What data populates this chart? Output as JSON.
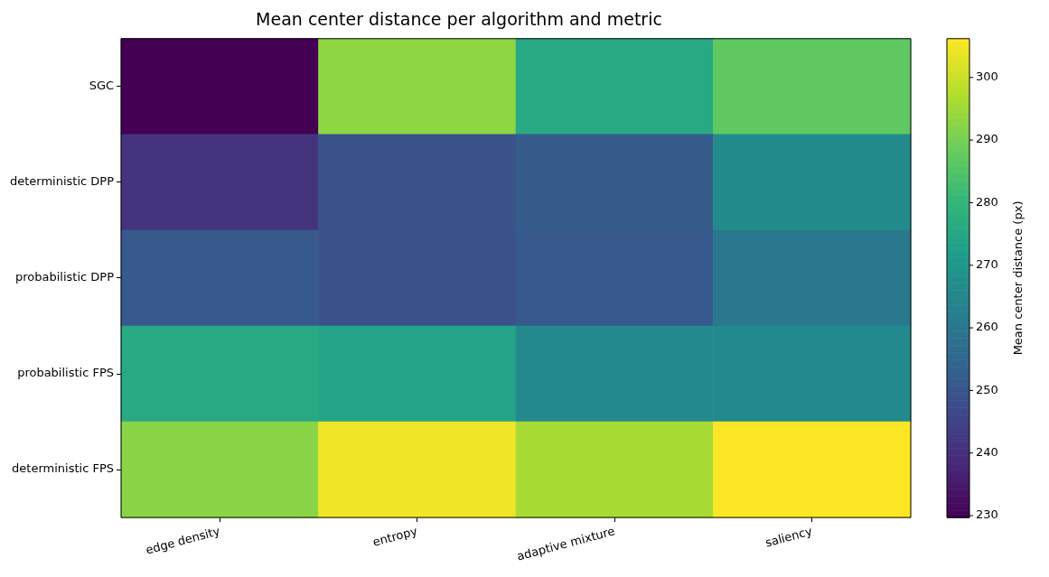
{
  "chart_data": {
    "type": "heatmap",
    "title": "Mean center distance per algorithm and metric",
    "categories": [
      "edge density",
      "entropy",
      "adaptive mixture",
      "saliency"
    ],
    "y_categories": [
      "SGC",
      "deterministic DPP",
      "probabilistic DPP",
      "probabilistic FPS",
      "deterministic FPS"
    ],
    "cells": [
      [
        229.7,
        293.2,
        275.6,
        287.0
      ],
      [
        241.2,
        248.8,
        251.9,
        266.4
      ],
      [
        251.1,
        248.8,
        251.0,
        260.3
      ],
      [
        275.6,
        274.0,
        265.7,
        265.7
      ],
      [
        292.4,
        304.7,
        296.2,
        306.2
      ]
    ],
    "clim": [
      229.7,
      306.2
    ],
    "cticks": [
      230,
      240,
      250,
      260,
      270,
      280,
      290,
      300
    ],
    "clabel": "Mean center distance (px)"
  }
}
